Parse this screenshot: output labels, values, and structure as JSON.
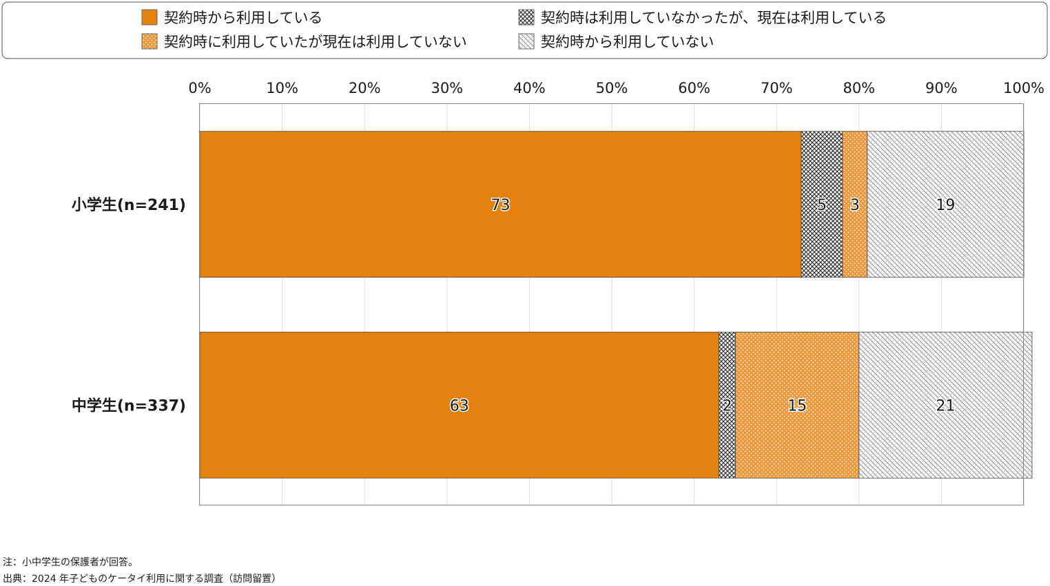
{
  "chart_data": {
    "type": "bar",
    "orientation": "horizontal",
    "stacked": true,
    "categories": [
      "小学生(n=241)",
      "中学生(n=337)"
    ],
    "series": [
      {
        "name": "契約時から利用している",
        "values": [
          73,
          63
        ],
        "color": "#e5820f",
        "pattern": "solid"
      },
      {
        "name": "契約時は利用していなかったが、現在は利用している",
        "values": [
          5,
          2
        ],
        "color": "#555555",
        "pattern": "crosshatch"
      },
      {
        "name": "契約時に利用していたが現在は利用していない",
        "values": [
          3,
          15
        ],
        "color": "#f0993a",
        "pattern": "dots"
      },
      {
        "name": "契約時から利用していない",
        "values": [
          19,
          21
        ],
        "color": "#999999",
        "pattern": "diagonal"
      }
    ],
    "xticks": [
      "0%",
      "10%",
      "20%",
      "30%",
      "40%",
      "50%",
      "60%",
      "70%",
      "80%",
      "90%",
      "100%"
    ],
    "xlim": [
      0,
      100
    ],
    "xaxis_position": "top",
    "grid": true,
    "legend_position": "top"
  },
  "notes": {
    "note": "注：小中学生の保護者が回答。",
    "source": "出典：2024 年子どものケータイ利用に関する調査（訪問留置）"
  }
}
